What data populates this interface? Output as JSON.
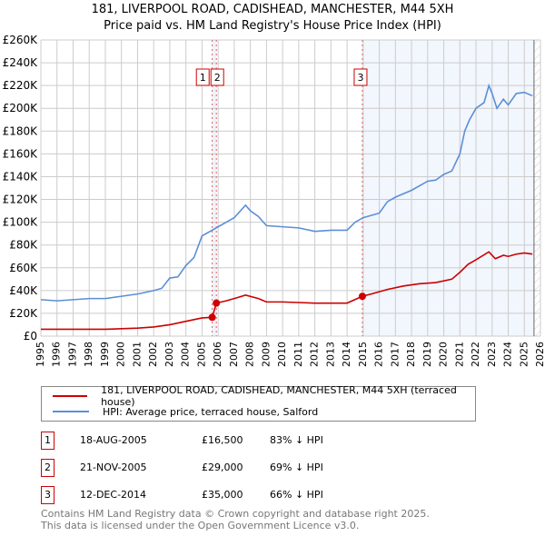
{
  "chart_data": {
    "type": "line",
    "title": "181, LIVERPOOL ROAD, CADISHEAD, MANCHESTER, M44 5XH",
    "subtitle": "Price paid vs. HM Land Registry's House Price Index (HPI)",
    "xlim": [
      1995,
      2026
    ],
    "ylim": [
      0,
      260000
    ],
    "yticks": [
      0,
      20000,
      40000,
      60000,
      80000,
      100000,
      120000,
      140000,
      160000,
      180000,
      200000,
      220000,
      240000,
      260000
    ],
    "ytick_labels": [
      "£0",
      "£20K",
      "£40K",
      "£60K",
      "£80K",
      "£100K",
      "£120K",
      "£140K",
      "£160K",
      "£180K",
      "£200K",
      "£220K",
      "£240K",
      "£260K"
    ],
    "xticks": [
      1995,
      1996,
      1997,
      1998,
      1999,
      2000,
      2001,
      2002,
      2003,
      2004,
      2005,
      2006,
      2007,
      2008,
      2009,
      2010,
      2011,
      2012,
      2013,
      2014,
      2015,
      2016,
      2017,
      2018,
      2019,
      2020,
      2021,
      2022,
      2023,
      2024,
      2025,
      2026
    ],
    "grid": true,
    "series": [
      {
        "name": "181, LIVERPOOL ROAD, CADISHEAD, MANCHESTER, M44 5XH (terraced house)",
        "color": "#cc0000",
        "x": [
          1995,
          1999,
          2000,
          2001,
          2002,
          2003,
          2004,
          2005,
          2005.63,
          2005.89,
          2006.5,
          2007,
          2007.7,
          2008.5,
          2009,
          2010,
          2011,
          2012,
          2013,
          2014,
          2014.95,
          2015.5,
          2016.5,
          2017.5,
          2018.5,
          2019.5,
          2020.5,
          2021,
          2021.5,
          2022,
          2022.8,
          2023.2,
          2023.7,
          2024,
          2024.5,
          2025,
          2025.5
        ],
        "y": [
          6000,
          6000,
          6500,
          7000,
          8000,
          10000,
          13000,
          16000,
          16500,
          29000,
          31000,
          33000,
          36000,
          33000,
          30000,
          30000,
          29500,
          29000,
          29000,
          29000,
          35000,
          37000,
          41000,
          44000,
          46000,
          47000,
          50000,
          56000,
          63000,
          67000,
          74000,
          68000,
          71000,
          70000,
          72000,
          73000,
          72000
        ]
      },
      {
        "name": "HPI: Average price, terraced house, Salford",
        "color": "#5b8fd6",
        "x": [
          1995,
          1996,
          1997,
          1998,
          1999,
          2000,
          2001,
          2002,
          2002.5,
          2003,
          2003.5,
          2004,
          2004.5,
          2005,
          2005.5,
          2006,
          2007,
          2007.7,
          2008,
          2008.5,
          2009,
          2010,
          2011,
          2012,
          2013,
          2014,
          2014.5,
          2015,
          2016,
          2016.5,
          2017,
          2018,
          2019,
          2019.5,
          2020,
          2020.5,
          2021,
          2021.3,
          2021.6,
          2022,
          2022.5,
          2022.8,
          2023,
          2023.3,
          2023.7,
          2024,
          2024.5,
          2025,
          2025.5
        ],
        "y": [
          32000,
          31000,
          32000,
          33000,
          33000,
          35000,
          37000,
          40000,
          42000,
          51000,
          52000,
          62000,
          69000,
          88000,
          92000,
          96000,
          104000,
          115000,
          110000,
          105000,
          97000,
          96000,
          95000,
          92000,
          93000,
          93000,
          100000,
          104000,
          108000,
          118000,
          122000,
          128000,
          136000,
          137000,
          142000,
          145000,
          160000,
          180000,
          190000,
          200000,
          205000,
          220000,
          213000,
          200000,
          208000,
          203000,
          213000,
          214000,
          211000
        ]
      }
    ],
    "sales": [
      {
        "label": "1",
        "x": 2005.63,
        "y": 16500,
        "date": "18-AUG-2005",
        "price": "£16,500",
        "hpi": "83% ↓ HPI"
      },
      {
        "label": "2",
        "x": 2005.89,
        "y": 29000,
        "date": "21-NOV-2005",
        "price": "£29,000",
        "hpi": "69% ↓ HPI"
      },
      {
        "label": "3",
        "x": 2014.95,
        "y": 35000,
        "date": "12-DEC-2014",
        "price": "£35,000",
        "hpi": "66% ↓ HPI"
      }
    ],
    "data_end": 2025.6
  },
  "footer": {
    "line1": "Contains HM Land Registry data © Crown copyright and database right 2025.",
    "line2": "This data is licensed under the Open Government Licence v3.0."
  }
}
